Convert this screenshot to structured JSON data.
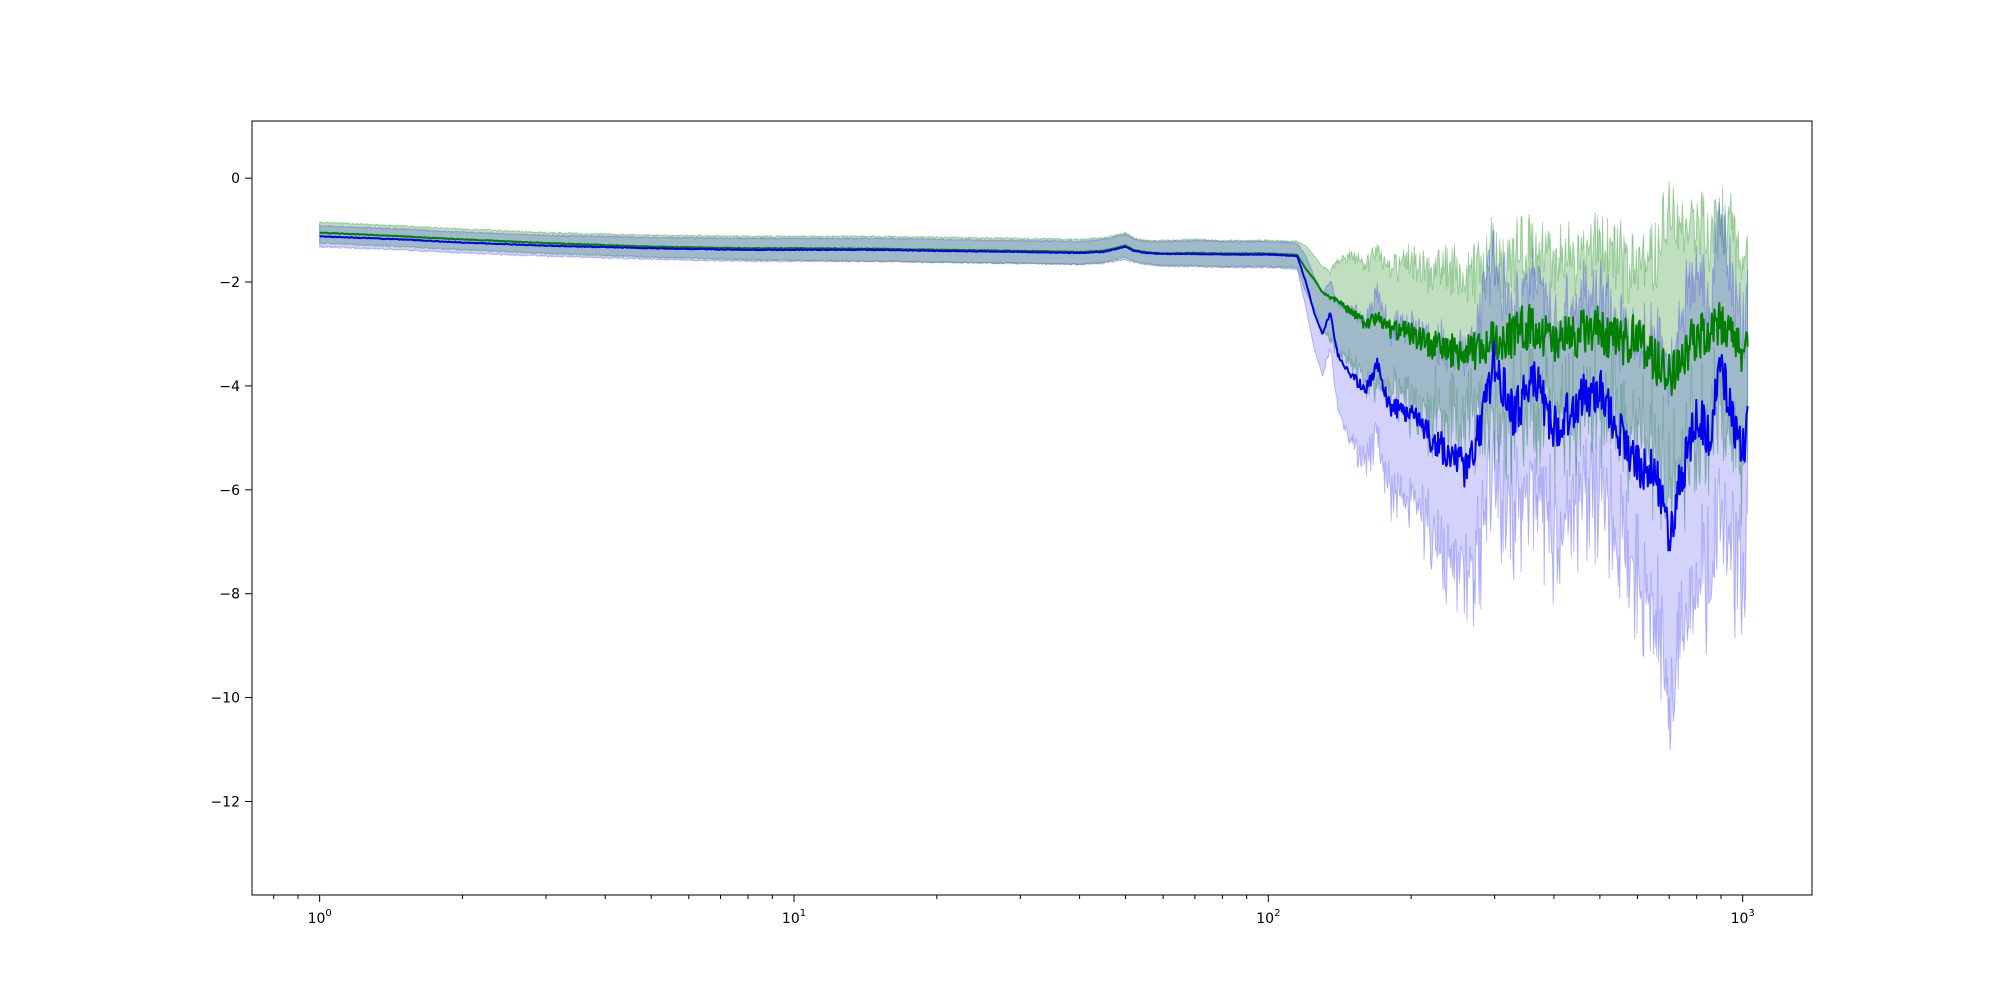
{
  "chart_data": {
    "type": "line",
    "title": "",
    "xlabel": "",
    "ylabel": "",
    "xscale": "log",
    "xlim": [
      0.72,
      1400
    ],
    "ylim": [
      -13.8,
      1.1
    ],
    "grid": false,
    "legend": "none",
    "x_ticks": [
      {
        "value": 1,
        "base": "10",
        "exp": "0"
      },
      {
        "value": 10,
        "base": "10",
        "exp": "1"
      },
      {
        "value": 100,
        "base": "10",
        "exp": "2"
      },
      {
        "value": 1000,
        "base": "10",
        "exp": "3"
      }
    ],
    "y_ticks": [
      {
        "value": 0,
        "label": "0"
      },
      {
        "value": -2,
        "label": "−2"
      },
      {
        "value": -4,
        "label": "−4"
      },
      {
        "value": -6,
        "label": "−6"
      },
      {
        "value": -8,
        "label": "−8"
      },
      {
        "value": -10,
        "label": "−10"
      },
      {
        "value": -12,
        "label": "−12"
      }
    ],
    "series": [
      {
        "color": "#008000",
        "band_color": "#008000",
        "x": [
          1,
          1.5,
          2,
          3,
          5,
          8,
          10,
          15,
          20,
          30,
          40,
          45,
          50,
          52,
          55,
          60,
          70,
          80,
          100,
          115,
          120,
          125,
          130,
          135,
          140,
          150,
          160,
          170,
          180,
          200,
          220,
          240,
          260,
          280,
          300,
          330,
          360,
          400,
          450,
          500,
          550,
          600,
          650,
          700,
          750,
          800,
          850,
          900,
          950,
          1000,
          1024
        ],
        "values": [
          -1.05,
          -1.12,
          -1.18,
          -1.25,
          -1.32,
          -1.35,
          -1.35,
          -1.36,
          -1.38,
          -1.4,
          -1.42,
          -1.4,
          -1.3,
          -1.38,
          -1.42,
          -1.45,
          -1.44,
          -1.45,
          -1.45,
          -1.48,
          -1.75,
          -1.95,
          -2.2,
          -2.3,
          -2.35,
          -2.6,
          -2.8,
          -2.7,
          -2.9,
          -3.0,
          -3.2,
          -3.3,
          -3.4,
          -3.3,
          -3.1,
          -3.0,
          -2.8,
          -3.2,
          -3.0,
          -2.9,
          -3.2,
          -3.0,
          -3.5,
          -3.8,
          -3.4,
          -3.0,
          -3.1,
          -2.8,
          -3.1,
          -3.3,
          -3.2
        ],
        "upper": [
          -0.85,
          -0.92,
          -0.98,
          -1.05,
          -1.1,
          -1.12,
          -1.12,
          -1.12,
          -1.14,
          -1.16,
          -1.18,
          -1.15,
          -1.05,
          -1.15,
          -1.2,
          -1.2,
          -1.18,
          -1.2,
          -1.2,
          -1.22,
          -1.3,
          -1.5,
          -1.7,
          -1.8,
          -1.6,
          -1.5,
          -1.7,
          -1.4,
          -1.8,
          -1.6,
          -1.9,
          -1.7,
          -2.0,
          -1.8,
          -1.4,
          -1.6,
          -1.2,
          -1.7,
          -1.5,
          -1.3,
          -1.7,
          -1.5,
          -1.6,
          -0.6,
          -0.9,
          -0.7,
          -1.3,
          -0.8,
          -1.1,
          -1.5,
          -1.6
        ],
        "lower": [
          -1.25,
          -1.32,
          -1.38,
          -1.45,
          -1.52,
          -1.57,
          -1.58,
          -1.6,
          -1.62,
          -1.64,
          -1.66,
          -1.62,
          -1.52,
          -1.6,
          -1.64,
          -1.68,
          -1.68,
          -1.7,
          -1.7,
          -1.72,
          -2.2,
          -2.5,
          -2.9,
          -3.1,
          -3.3,
          -3.6,
          -3.9,
          -4.0,
          -4.1,
          -4.4,
          -4.5,
          -4.7,
          -4.8,
          -4.6,
          -4.5,
          -4.6,
          -4.4,
          -4.7,
          -4.6,
          -4.4,
          -4.8,
          -4.6,
          -5.3,
          -5.8,
          -5.4,
          -5.0,
          -5.0,
          -4.6,
          -5.0,
          -5.4,
          -5.0
        ]
      },
      {
        "color": "#0000ee",
        "band_color": "#3333ee",
        "x": [
          1,
          1.5,
          2,
          3,
          5,
          8,
          10,
          15,
          20,
          30,
          40,
          45,
          50,
          52,
          55,
          60,
          70,
          80,
          100,
          115,
          120,
          125,
          130,
          135,
          140,
          150,
          160,
          170,
          180,
          200,
          220,
          240,
          260,
          280,
          300,
          330,
          360,
          400,
          450,
          500,
          550,
          600,
          650,
          700,
          750,
          800,
          850,
          900,
          950,
          1000,
          1024
        ],
        "values": [
          -1.12,
          -1.18,
          -1.24,
          -1.3,
          -1.35,
          -1.38,
          -1.38,
          -1.38,
          -1.4,
          -1.42,
          -1.44,
          -1.42,
          -1.32,
          -1.4,
          -1.44,
          -1.46,
          -1.46,
          -1.47,
          -1.47,
          -1.5,
          -2.0,
          -2.6,
          -3.0,
          -2.6,
          -3.4,
          -3.8,
          -4.1,
          -3.6,
          -4.4,
          -4.5,
          -5.0,
          -5.3,
          -5.6,
          -4.8,
          -3.5,
          -4.6,
          -3.8,
          -4.8,
          -4.3,
          -4.0,
          -4.9,
          -5.5,
          -5.6,
          -6.8,
          -5.6,
          -4.5,
          -5.0,
          -3.6,
          -4.6,
          -5.2,
          -4.8
        ],
        "upper": [
          -0.92,
          -0.98,
          -1.04,
          -1.1,
          -1.14,
          -1.16,
          -1.16,
          -1.16,
          -1.18,
          -1.2,
          -1.22,
          -1.18,
          -1.08,
          -1.17,
          -1.22,
          -1.22,
          -1.2,
          -1.22,
          -1.22,
          -1.25,
          -1.5,
          -1.9,
          -2.2,
          -2.0,
          -2.4,
          -2.5,
          -2.8,
          -2.2,
          -2.9,
          -2.8,
          -3.2,
          -3.3,
          -3.5,
          -2.6,
          -1.5,
          -2.7,
          -1.8,
          -2.8,
          -2.4,
          -2.1,
          -2.9,
          -3.2,
          -3.0,
          -3.6,
          -2.6,
          -1.5,
          -2.3,
          -0.8,
          -2.0,
          -2.8,
          -2.6
        ],
        "lower": [
          -1.32,
          -1.38,
          -1.44,
          -1.5,
          -1.56,
          -1.6,
          -1.6,
          -1.6,
          -1.62,
          -1.64,
          -1.66,
          -1.64,
          -1.56,
          -1.62,
          -1.66,
          -1.7,
          -1.7,
          -1.72,
          -1.72,
          -1.75,
          -2.5,
          -3.3,
          -3.8,
          -3.3,
          -4.4,
          -5.1,
          -5.5,
          -5.0,
          -6.0,
          -6.2,
          -6.8,
          -7.3,
          -7.8,
          -7.0,
          -5.6,
          -6.5,
          -5.8,
          -6.8,
          -6.2,
          -5.9,
          -6.9,
          -7.8,
          -8.2,
          -10.2,
          -8.6,
          -7.5,
          -7.8,
          -6.5,
          -7.2,
          -7.6,
          -7.0
        ]
      }
    ]
  }
}
